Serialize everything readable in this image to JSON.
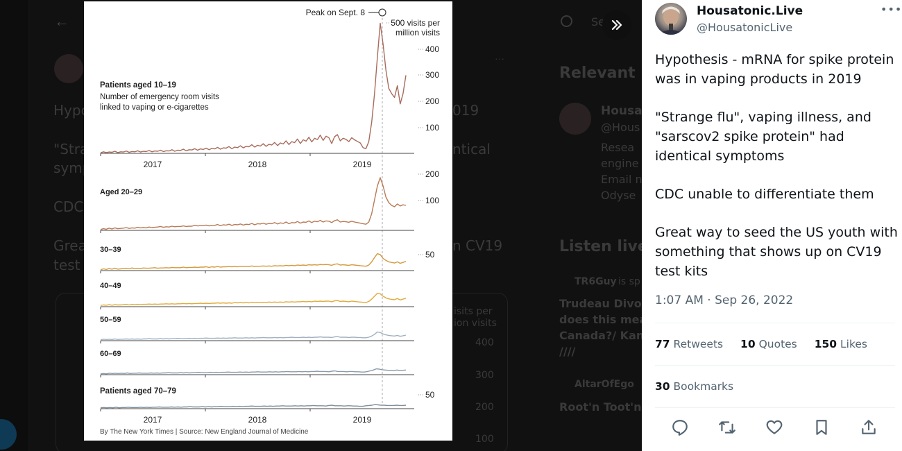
{
  "background": {
    "items": [
      "Hypo",
      "\"Stra",
      "symp",
      "CDC",
      "Grea",
      "test k",
      "Relevant p",
      "Housat",
      "@Hous",
      "Resea",
      "engine",
      "Email n",
      "Odyse",
      "Listen live",
      "TR6Guy",
      "is sp",
      "Trudeau Divor",
      "does this mea",
      "Canada?/ Kan",
      "////",
      "AltarOfEgo",
      "Root'n Toot'n",
      "isits per",
      "ion visits",
      "400",
      "300",
      "200",
      "100",
      "019",
      "ntical",
      "n CV19",
      "Se"
    ]
  },
  "chart_data": {
    "type": "line",
    "unit_label_1": "500 visits per",
    "unit_label_2": "million visits",
    "annotation": "Peak on Sept. 8",
    "top_label": "Patients aged 10–19",
    "subtitle_1": "Number of emergency room visits",
    "subtitle_2": "linked to vaping or e-cigarettes",
    "bottom_label": "Patients aged 70–79",
    "x_ticks": [
      "2017",
      "2018",
      "2019"
    ],
    "source": "By The New York Times | Source: New England Journal of Medicine",
    "panels": [
      {
        "name": "10-19",
        "label": "",
        "color": "#a86b5c",
        "ticks": [
          "400",
          "300",
          "200",
          "100"
        ],
        "values": [
          2,
          6,
          3,
          5,
          4,
          8,
          3,
          6,
          5,
          9,
          4,
          7,
          6,
          10,
          5,
          8,
          7,
          11,
          6,
          9,
          8,
          12,
          7,
          10,
          9,
          14,
          8,
          12,
          11,
          16,
          10,
          14,
          13,
          18,
          12,
          17,
          15,
          20,
          14,
          19,
          17,
          23,
          16,
          21,
          20,
          26,
          18,
          24,
          22,
          29,
          21,
          27,
          25,
          33,
          24,
          31,
          28,
          37,
          27,
          35,
          32,
          42,
          30,
          40,
          36,
          48,
          34,
          45,
          41,
          55,
          38,
          52,
          47,
          62,
          44,
          58,
          53,
          70,
          50,
          66,
          60,
          38,
          64,
          72,
          48,
          58,
          54,
          45,
          60,
          52,
          46,
          40,
          22,
          18,
          45,
          120,
          230,
          370,
          500,
          420,
          320,
          250,
          230,
          215,
          260,
          190,
          230,
          300
        ]
      },
      {
        "name": "20-29",
        "label": "Aged 20–29",
        "color": "#b97a56",
        "ticks": [
          "200",
          "100"
        ],
        "values": [
          3,
          6,
          4,
          8,
          5,
          9,
          6,
          7,
          8,
          10,
          7,
          9,
          8,
          11,
          9,
          10,
          9,
          12,
          10,
          11,
          12,
          14,
          11,
          13,
          12,
          15,
          13,
          14,
          14,
          16,
          14,
          15,
          15,
          18,
          16,
          17,
          17,
          19,
          16,
          18,
          18,
          21,
          17,
          20,
          19,
          22,
          18,
          21,
          20,
          23,
          19,
          22,
          21,
          25,
          20,
          24,
          23,
          26,
          22,
          25,
          24,
          28,
          23,
          27,
          25,
          30,
          24,
          28,
          27,
          32,
          26,
          30,
          29,
          34,
          28,
          33,
          31,
          36,
          30,
          34,
          33,
          28,
          35,
          38,
          30,
          32,
          31,
          29,
          33,
          30,
          28,
          26,
          24,
          22,
          30,
          60,
          110,
          160,
          190,
          160,
          120,
          100,
          90,
          85,
          95,
          88,
          92,
          90
        ]
      },
      {
        "name": "30-39",
        "label": "30–39",
        "color": "#d49a3e",
        "ticks": [
          "50"
        ],
        "values": [
          3,
          6,
          4,
          7,
          5,
          8,
          5,
          6,
          7,
          8,
          6,
          9,
          7,
          8,
          7,
          9,
          8,
          8,
          9,
          10,
          8,
          9,
          9,
          10,
          9,
          11,
          10,
          10,
          10,
          12,
          10,
          11,
          11,
          12,
          11,
          12,
          12,
          13,
          11,
          13,
          12,
          14,
          12,
          13,
          13,
          14,
          13,
          14,
          13,
          15,
          14,
          14,
          14,
          16,
          14,
          15,
          15,
          16,
          15,
          16,
          15,
          17,
          16,
          17,
          16,
          18,
          17,
          18,
          17,
          19,
          18,
          19,
          18,
          20,
          19,
          20,
          19,
          21,
          20,
          21,
          20,
          18,
          22,
          23,
          19,
          20,
          19,
          18,
          20,
          19,
          18,
          17,
          16,
          15,
          19,
          30,
          45,
          58,
          55,
          42,
          35,
          30,
          28,
          26,
          30,
          25,
          28,
          32
        ]
      },
      {
        "name": "40-49",
        "label": "40–49",
        "color": "#e2aa3c",
        "ticks": [],
        "values": [
          4,
          6,
          5,
          7,
          5,
          7,
          6,
          6,
          7,
          8,
          6,
          8,
          7,
          8,
          7,
          8,
          8,
          9,
          8,
          9,
          8,
          9,
          9,
          10,
          9,
          10,
          9,
          10,
          10,
          11,
          10,
          11,
          10,
          11,
          11,
          12,
          11,
          12,
          11,
          12,
          12,
          13,
          12,
          13,
          12,
          13,
          12,
          14,
          13,
          14,
          13,
          14,
          13,
          15,
          14,
          15,
          14,
          15,
          14,
          16,
          15,
          16,
          15,
          16,
          15,
          17,
          16,
          17,
          16,
          17,
          17,
          18,
          17,
          18,
          17,
          19,
          18,
          19,
          18,
          19,
          19,
          17,
          20,
          21,
          18,
          19,
          18,
          17,
          19,
          18,
          17,
          16,
          15,
          14,
          18,
          26,
          36,
          46,
          44,
          36,
          30,
          27,
          25,
          24,
          28,
          23,
          26,
          29
        ]
      },
      {
        "name": "50-59",
        "label": "50–59",
        "color": "#9fb1c1",
        "ticks": [],
        "values": [
          3,
          5,
          4,
          5,
          4,
          6,
          4,
          5,
          5,
          6,
          5,
          6,
          5,
          6,
          5,
          6,
          6,
          7,
          6,
          6,
          6,
          7,
          6,
          7,
          6,
          7,
          7,
          8,
          7,
          7,
          7,
          8,
          7,
          8,
          7,
          8,
          8,
          9,
          8,
          8,
          8,
          9,
          8,
          9,
          8,
          9,
          9,
          10,
          9,
          9,
          9,
          10,
          9,
          10,
          9,
          10,
          10,
          11,
          10,
          10,
          10,
          11,
          10,
          11,
          10,
          11,
          11,
          12,
          11,
          11,
          11,
          12,
          11,
          12,
          11,
          12,
          12,
          13,
          12,
          12,
          12,
          11,
          13,
          14,
          12,
          12,
          12,
          11,
          12,
          12,
          11,
          11,
          10,
          10,
          12,
          16,
          22,
          30,
          28,
          23,
          20,
          18,
          17,
          16,
          18,
          15,
          17,
          19
        ]
      },
      {
        "name": "60-69",
        "label": "60–69",
        "color": "#8a9aa8",
        "ticks": [],
        "values": [
          3,
          4,
          3,
          5,
          4,
          5,
          4,
          5,
          4,
          6,
          4,
          5,
          5,
          6,
          5,
          5,
          5,
          6,
          5,
          6,
          5,
          6,
          6,
          7,
          6,
          6,
          6,
          7,
          6,
          7,
          6,
          7,
          7,
          8,
          7,
          7,
          7,
          8,
          7,
          8,
          7,
          8,
          8,
          9,
          8,
          8,
          8,
          9,
          8,
          9,
          8,
          9,
          9,
          10,
          9,
          9,
          9,
          10,
          9,
          10,
          9,
          10,
          10,
          11,
          10,
          10,
          10,
          11,
          10,
          11,
          10,
          11,
          11,
          12,
          11,
          11,
          11,
          10,
          12,
          13,
          11,
          11,
          11,
          10,
          11,
          11,
          10,
          10,
          9,
          9,
          11,
          13,
          16,
          20,
          19,
          17,
          16,
          15,
          15,
          14,
          16,
          14,
          15,
          16
        ]
      },
      {
        "name": "70-79",
        "label": "",
        "color": "#7f8e9b",
        "ticks": [
          "50"
        ],
        "values": [
          3,
          4,
          3,
          4,
          3,
          5,
          3,
          4,
          4,
          5,
          4,
          4,
          4,
          5,
          4,
          5,
          4,
          5,
          5,
          6,
          5,
          5,
          5,
          6,
          5,
          6,
          5,
          6,
          6,
          7,
          6,
          6,
          6,
          7,
          6,
          7,
          6,
          7,
          7,
          8,
          7,
          7,
          7,
          8,
          7,
          8,
          7,
          8,
          8,
          9,
          8,
          8,
          8,
          9,
          8,
          9,
          8,
          9,
          9,
          10,
          9,
          9,
          9,
          10,
          9,
          10,
          9,
          10,
          10,
          11,
          10,
          10,
          10,
          9,
          11,
          12,
          10,
          10,
          10,
          9,
          10,
          10,
          9,
          9,
          8,
          8,
          10,
          11,
          12,
          14,
          13,
          12,
          12,
          11,
          11,
          11,
          12,
          11,
          11,
          12
        ]
      }
    ]
  },
  "tweet": {
    "user_name": "Housatonic.Live",
    "handle": "@HousatonicLive",
    "paragraphs": [
      "Hypothesis - mRNA for spike protein was in vaping products in 2019",
      "\"Strange flu\", vaping illness, and \"sarscov2 spike protein\" had identical symptoms",
      "CDC unable to differentiate them",
      "Great way to seed the US youth with something that shows up on CV19 test kits"
    ],
    "timestamp": "1:07 AM · Sep 26, 2022",
    "retweets_count": "77",
    "retweets_label": "Retweets",
    "quotes_count": "10",
    "quotes_label": "Quotes",
    "likes_count": "150",
    "likes_label": "Likes",
    "bookmarks_count": "30",
    "bookmarks_label": "Bookmarks"
  },
  "colors": {
    "accent": "#1d9bf0",
    "muted": "#536471",
    "text": "#0f1419"
  }
}
